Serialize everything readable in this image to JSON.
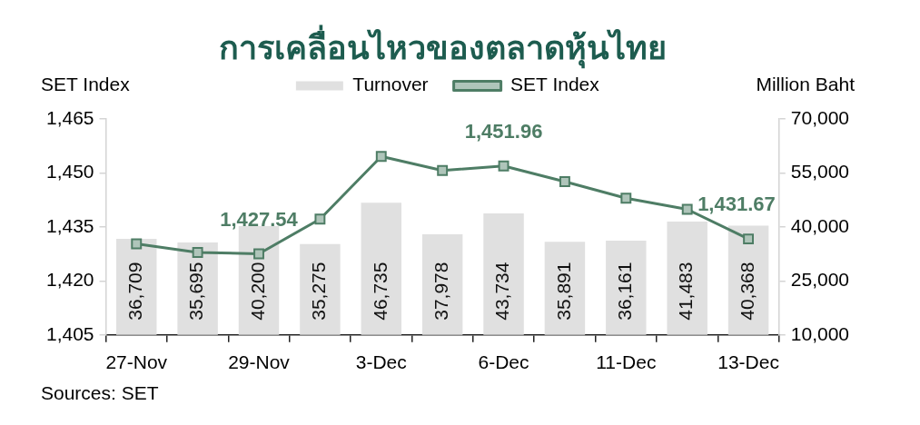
{
  "chart_data": {
    "type": "bar",
    "title": "การเคลื่อนไหวของตลาดหุ้นไทย",
    "ylabel": "SET Index",
    "y2label": "Million Baht",
    "annotations": [
      "Sources: SET"
    ],
    "categories": [
      "27-Nov",
      null,
      "29-Nov",
      null,
      "3-Dec",
      null,
      "6-Dec",
      null,
      "11-Dec",
      null,
      "13-Dec"
    ],
    "series": [
      {
        "name": "Turnover",
        "axis": "y2",
        "color": "#e0e0e0",
        "values": [
          36709,
          35695,
          40200,
          35275,
          46735,
          37978,
          43734,
          35891,
          36161,
          41483,
          40368
        ],
        "value_labels": [
          "36,709",
          "35,695",
          "40,200",
          "35,275",
          "46,735",
          "37,978",
          "43,734",
          "35,891",
          "36,161",
          "41,483",
          "40,368"
        ]
      },
      {
        "name": "SET Index",
        "type": "line",
        "axis": "y",
        "color": "#4e7d65",
        "values": [
          1430.3,
          1427.9,
          1427.54,
          1437.2,
          1454.6,
          1450.7,
          1451.96,
          1447.6,
          1443.0,
          1439.9,
          1431.67
        ],
        "value_labels": [
          null,
          null,
          "1,427.54",
          null,
          null,
          null,
          "1,451.96",
          null,
          null,
          null,
          "1,431.67"
        ]
      }
    ],
    "ylim": [
      1405,
      1465
    ],
    "yticks": [
      {
        "value": 1405,
        "label": "1,405"
      },
      {
        "value": 1420,
        "label": "1,420"
      },
      {
        "value": 1435,
        "label": "1,435"
      },
      {
        "value": 1450,
        "label": "1,450"
      },
      {
        "value": 1465,
        "label": "1,465"
      }
    ],
    "y2lim": [
      10000,
      70000
    ],
    "y2ticks": [
      {
        "value": 10000,
        "label": "10,000"
      },
      {
        "value": 25000,
        "label": "25,000"
      },
      {
        "value": 40000,
        "label": "40,000"
      },
      {
        "value": 55000,
        "label": "55,000"
      },
      {
        "value": 70000,
        "label": "70,000"
      }
    ],
    "grid": false,
    "legend": "top",
    "marker": "square"
  }
}
